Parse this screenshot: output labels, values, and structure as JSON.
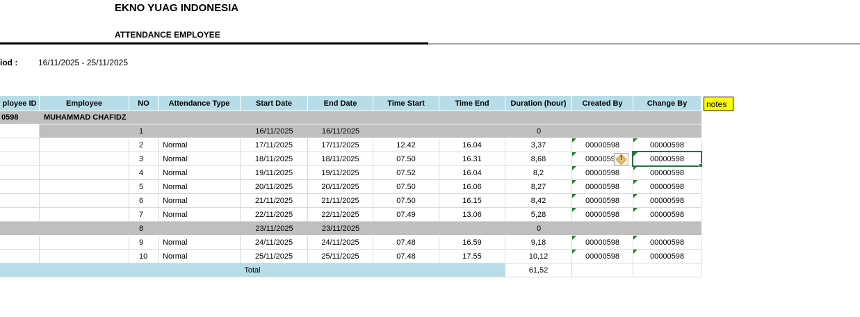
{
  "page": {
    "company_name": "EKNO YUAG INDONESIA",
    "report_title": "ATTENDANCE EMPLOYEE",
    "period_label": "iod :",
    "period_value": "16/11/2025 - 25/11/2025",
    "notes_label": "notes"
  },
  "icons": {
    "warning_glyph": "!",
    "flag_triangle": "green-corner-triangle"
  },
  "colors": {
    "header_bg": "#b7dee8",
    "shaded_row_bg": "#bfbfbf",
    "total_row_bg": "#b7dee8",
    "notes_bg": "#ffff00",
    "selection_border": "#217346",
    "flag_green": "#1e7e34",
    "gridline": "#d9d9d9",
    "warning_diamond": "#e6c06a"
  },
  "table": {
    "headers": [
      "ployee ID",
      "Employee",
      "NO",
      "Attendance Type",
      "Start Date",
      "End Date",
      "Time Start",
      "Time End",
      "Duration (hour)",
      "Created By",
      "Change By"
    ],
    "employee": {
      "id": "0598",
      "name": "MUHAMMAD CHAFIDZ"
    },
    "rows": [
      {
        "no": "1",
        "type": "",
        "start_date": "16/11/2025",
        "end_date": "16/11/2025",
        "time_start": "",
        "time_end": "",
        "duration": "0",
        "created_by": "",
        "change_by": "",
        "shaded": true,
        "id_cell_white": true,
        "flags": false
      },
      {
        "no": "2",
        "type": "Normal",
        "start_date": "17/11/2025",
        "end_date": "17/11/2025",
        "time_start": "12.42",
        "time_end": "16.04",
        "duration": "3,37",
        "created_by": "00000598",
        "change_by": "00000598",
        "shaded": false,
        "flags": true
      },
      {
        "no": "3",
        "type": "Normal",
        "start_date": "18/11/2025",
        "end_date": "18/11/2025",
        "time_start": "07.50",
        "time_end": "16.31",
        "duration": "8,68",
        "created_by": "00000598",
        "change_by": "00000598",
        "shaded": false,
        "flags": true,
        "warning": true,
        "selected": true
      },
      {
        "no": "4",
        "type": "Normal",
        "start_date": "19/11/2025",
        "end_date": "19/11/2025",
        "time_start": "07.52",
        "time_end": "16.04",
        "duration": "8,2",
        "created_by": "00000598",
        "change_by": "00000598",
        "shaded": false,
        "flags": true
      },
      {
        "no": "5",
        "type": "Normal",
        "start_date": "20/11/2025",
        "end_date": "20/11/2025",
        "time_start": "07.50",
        "time_end": "16.06",
        "duration": "8,27",
        "created_by": "00000598",
        "change_by": "00000598",
        "shaded": false,
        "flags": true
      },
      {
        "no": "6",
        "type": "Normal",
        "start_date": "21/11/2025",
        "end_date": "21/11/2025",
        "time_start": "07.50",
        "time_end": "16.15",
        "duration": "8,42",
        "created_by": "00000598",
        "change_by": "00000598",
        "shaded": false,
        "flags": true
      },
      {
        "no": "7",
        "type": "Normal",
        "start_date": "22/11/2025",
        "end_date": "22/11/2025",
        "time_start": "07.49",
        "time_end": "13.06",
        "duration": "5,28",
        "created_by": "00000598",
        "change_by": "00000598",
        "shaded": false,
        "flags": true
      },
      {
        "no": "8",
        "type": "",
        "start_date": "23/11/2025",
        "end_date": "23/11/2025",
        "time_start": "",
        "time_end": "",
        "duration": "0",
        "created_by": "",
        "change_by": "",
        "shaded": true,
        "flags": false
      },
      {
        "no": "9",
        "type": "Normal",
        "start_date": "24/11/2025",
        "end_date": "24/11/2025",
        "time_start": "07.48",
        "time_end": "16.59",
        "duration": "9,18",
        "created_by": "00000598",
        "change_by": "00000598",
        "shaded": false,
        "flags": true
      },
      {
        "no": "10",
        "type": "Normal",
        "start_date": "25/11/2025",
        "end_date": "25/11/2025",
        "time_start": "07.48",
        "time_end": "17.55",
        "duration": "10,12",
        "created_by": "00000598",
        "change_by": "00000598",
        "shaded": false,
        "flags": true
      }
    ],
    "total_label": "Total",
    "total_duration": "61,52"
  }
}
